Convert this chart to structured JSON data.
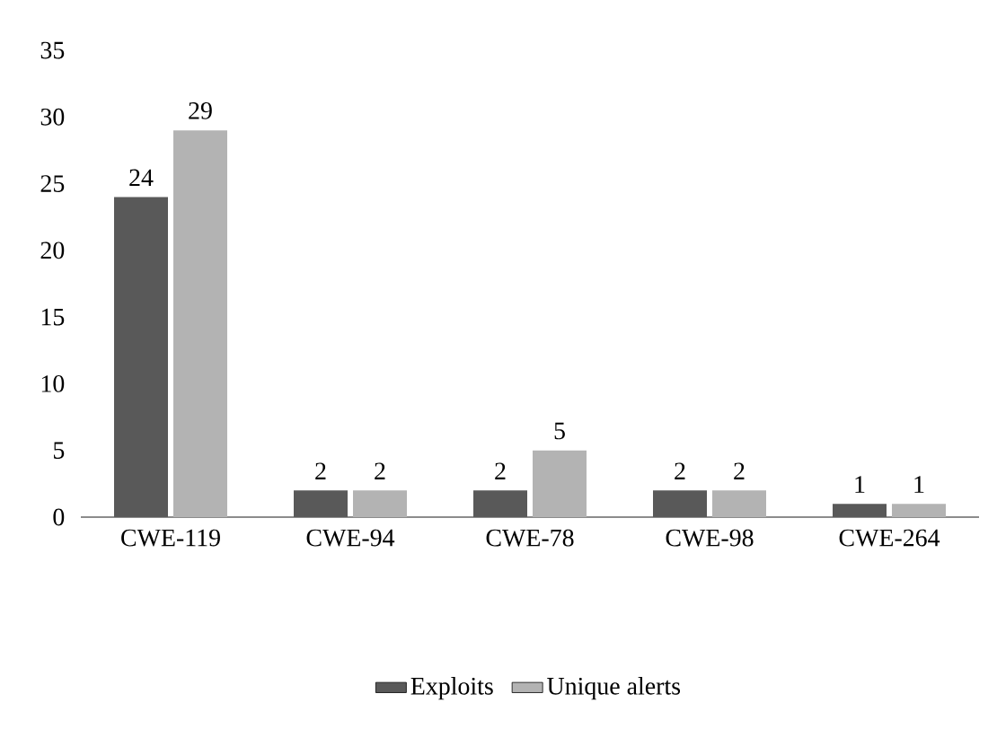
{
  "chart_data": {
    "type": "bar",
    "categories": [
      "CWE-119",
      "CWE-94",
      "CWE-78",
      "CWE-98",
      "CWE-264"
    ],
    "series": [
      {
        "name": "Exploits",
        "color": "#595959",
        "values": [
          24,
          2,
          2,
          2,
          1
        ]
      },
      {
        "name": "Unique alerts",
        "color": "#b3b3b3",
        "values": [
          29,
          2,
          5,
          2,
          1
        ]
      }
    ],
    "ylim": [
      0,
      35
    ],
    "yticks": [
      0,
      5,
      10,
      15,
      20,
      25,
      30,
      35
    ],
    "data_labels": true,
    "legend": "bottom",
    "grid": false
  }
}
